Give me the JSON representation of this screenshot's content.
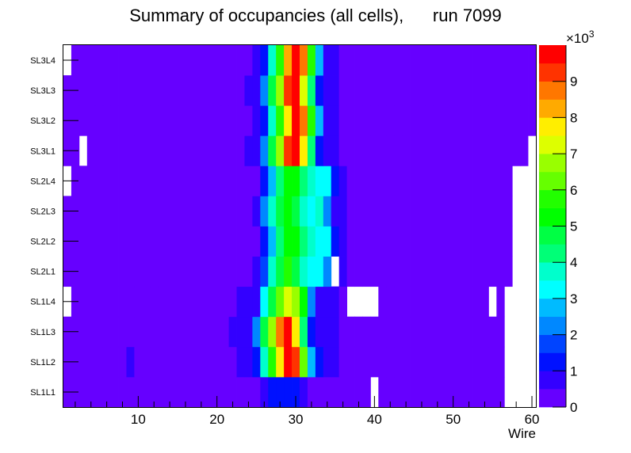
{
  "chart_data": {
    "type": "heatmap",
    "title": "Summary of occupancies (all cells),      run 7099",
    "xlabel": "Wire",
    "ylabel": "",
    "xlim": [
      0.5,
      60.5
    ],
    "x_ticks": [
      "10",
      "20",
      "30",
      "40",
      "50",
      "60"
    ],
    "x_tick_values": [
      10,
      20,
      30,
      40,
      50,
      60
    ],
    "y_categories": [
      "SL1L1",
      "SL1L2",
      "SL1L3",
      "SL1L4",
      "SL2L1",
      "SL2L2",
      "SL2L3",
      "SL2L4",
      "SL3L1",
      "SL3L2",
      "SL3L3",
      "SL3L4"
    ],
    "zlim": [
      0,
      10000
    ],
    "z_multiplier_label": "×10",
    "z_multiplier_exp": "3",
    "z_ticks": [
      "0",
      "1",
      "2",
      "3",
      "4",
      "5",
      "6",
      "7",
      "8",
      "9"
    ],
    "z_tick_values": [
      0,
      1000,
      2000,
      3000,
      4000,
      5000,
      6000,
      7000,
      8000,
      9000
    ],
    "palette": [
      "#6600ff",
      "#3300ff",
      "#0011ff",
      "#0044ff",
      "#0088ff",
      "#00bbff",
      "#00ffff",
      "#00ffcc",
      "#00ff77",
      "#00ff44",
      "#00ff00",
      "#22ff00",
      "#66ff00",
      "#99ff00",
      "#ddff00",
      "#ffee00",
      "#ffaa00",
      "#ff7700",
      "#ff3300",
      "#ff0000"
    ],
    "rows_rle_note": "each row: runs of [value, count] across wires 1..60; null = empty bin",
    "rows": {
      "SL1L1": [
        [
          250,
          25
        ],
        [
          750,
          1
        ],
        [
          1250,
          4
        ],
        [
          750,
          1
        ],
        [
          250,
          8
        ],
        [
          null,
          1
        ],
        [
          250,
          16
        ],
        [
          null,
          4
        ]
      ],
      "SL1L2": [
        [
          250,
          8
        ],
        [
          750,
          1
        ],
        [
          250,
          13
        ],
        [
          750,
          2
        ],
        [
          1250,
          1
        ],
        [
          3750,
          1
        ],
        [
          5750,
          1
        ],
        [
          7750,
          1
        ],
        [
          9750,
          1
        ],
        [
          9250,
          1
        ],
        [
          6250,
          1
        ],
        [
          2750,
          1
        ],
        [
          1250,
          1
        ],
        [
          750,
          2
        ],
        [
          250,
          21
        ],
        [
          null,
          4
        ]
      ],
      "SL1L3": [
        [
          250,
          21
        ],
        [
          750,
          3
        ],
        [
          2250,
          1
        ],
        [
          4750,
          1
        ],
        [
          6750,
          1
        ],
        [
          8750,
          1
        ],
        [
          9750,
          1
        ],
        [
          7750,
          1
        ],
        [
          4250,
          1
        ],
        [
          1250,
          1
        ],
        [
          750,
          3
        ],
        [
          250,
          21
        ],
        [
          null,
          4
        ]
      ],
      "SL1L4": [
        [
          null,
          1
        ],
        [
          250,
          21
        ],
        [
          750,
          3
        ],
        [
          3250,
          1
        ],
        [
          4750,
          1
        ],
        [
          6250,
          1
        ],
        [
          7250,
          1
        ],
        [
          6750,
          1
        ],
        [
          5250,
          1
        ],
        [
          2250,
          1
        ],
        [
          750,
          3
        ],
        [
          250,
          1
        ],
        [
          null,
          4
        ],
        [
          250,
          14
        ],
        [
          null,
          1
        ],
        [
          250,
          1
        ],
        [
          null,
          4
        ]
      ],
      "SL2L1": [
        [
          250,
          24
        ],
        [
          750,
          1
        ],
        [
          1750,
          1
        ],
        [
          3750,
          1
        ],
        [
          4750,
          1
        ],
        [
          5750,
          1
        ],
        [
          4750,
          1
        ],
        [
          3750,
          1
        ],
        [
          3250,
          2
        ],
        [
          2250,
          1
        ],
        [
          null,
          1
        ],
        [
          750,
          1
        ],
        [
          250,
          21
        ],
        [
          null,
          3
        ]
      ],
      "SL2L2": [
        [
          250,
          25
        ],
        [
          1250,
          1
        ],
        [
          2750,
          1
        ],
        [
          4250,
          1
        ],
        [
          5250,
          2
        ],
        [
          4250,
          1
        ],
        [
          3750,
          1
        ],
        [
          3250,
          2
        ],
        [
          1250,
          1
        ],
        [
          750,
          1
        ],
        [
          250,
          21
        ],
        [
          null,
          3
        ]
      ],
      "SL2L3": [
        [
          250,
          24
        ],
        [
          750,
          1
        ],
        [
          2250,
          1
        ],
        [
          3750,
          1
        ],
        [
          4750,
          1
        ],
        [
          5250,
          1
        ],
        [
          4750,
          1
        ],
        [
          3750,
          1
        ],
        [
          3250,
          1
        ],
        [
          3750,
          1
        ],
        [
          2250,
          1
        ],
        [
          750,
          2
        ],
        [
          250,
          21
        ],
        [
          null,
          3
        ]
      ],
      "SL2L4": [
        [
          null,
          1
        ],
        [
          250,
          24
        ],
        [
          1250,
          1
        ],
        [
          2750,
          1
        ],
        [
          4250,
          1
        ],
        [
          5250,
          2
        ],
        [
          4250,
          1
        ],
        [
          3750,
          1
        ],
        [
          3250,
          2
        ],
        [
          1250,
          1
        ],
        [
          750,
          1
        ],
        [
          250,
          21
        ],
        [
          null,
          3
        ]
      ],
      "SL3L1": [
        [
          250,
          2
        ],
        [
          null,
          1
        ],
        [
          250,
          20
        ],
        [
          750,
          2
        ],
        [
          2250,
          1
        ],
        [
          4750,
          1
        ],
        [
          6750,
          1
        ],
        [
          9250,
          1
        ],
        [
          9750,
          1
        ],
        [
          7750,
          1
        ],
        [
          4250,
          1
        ],
        [
          1250,
          1
        ],
        [
          750,
          2
        ],
        [
          250,
          24
        ],
        [
          null,
          1
        ]
      ],
      "SL3L2": [
        [
          250,
          24
        ],
        [
          750,
          1
        ],
        [
          1250,
          1
        ],
        [
          3750,
          1
        ],
        [
          5750,
          1
        ],
        [
          7750,
          1
        ],
        [
          9750,
          1
        ],
        [
          8750,
          1
        ],
        [
          5750,
          1
        ],
        [
          2750,
          1
        ],
        [
          750,
          2
        ],
        [
          250,
          25
        ]
      ],
      "SL3L3": [
        [
          250,
          23
        ],
        [
          750,
          2
        ],
        [
          2250,
          1
        ],
        [
          4750,
          1
        ],
        [
          6750,
          1
        ],
        [
          9250,
          1
        ],
        [
          9750,
          1
        ],
        [
          7250,
          1
        ],
        [
          4250,
          1
        ],
        [
          1250,
          1
        ],
        [
          750,
          2
        ],
        [
          250,
          25
        ]
      ],
      "SL3L4": [
        [
          null,
          1
        ],
        [
          250,
          23
        ],
        [
          750,
          1
        ],
        [
          1250,
          1
        ],
        [
          3750,
          1
        ],
        [
          5750,
          1
        ],
        [
          8250,
          1
        ],
        [
          9750,
          1
        ],
        [
          8750,
          1
        ],
        [
          5750,
          1
        ],
        [
          2750,
          1
        ],
        [
          750,
          2
        ],
        [
          250,
          25
        ]
      ]
    }
  }
}
